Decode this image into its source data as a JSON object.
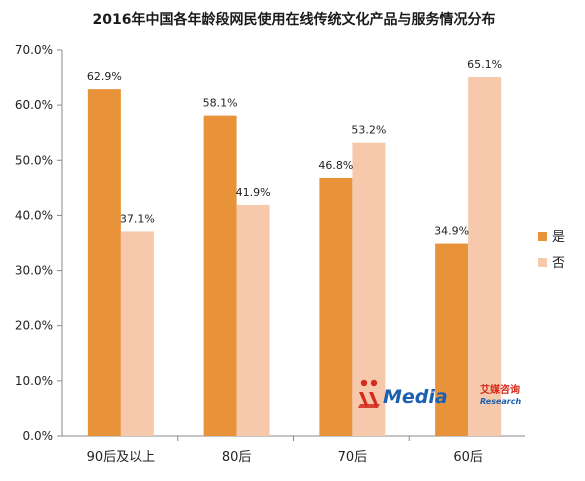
{
  "chart_data": {
    "type": "bar",
    "title": "2016年中国各年龄段网民使用在线传统文化产品与服务情况分布",
    "categories": [
      "90后及以上",
      "80后",
      "70后",
      "60后"
    ],
    "series": [
      {
        "name": "是",
        "values": [
          62.9,
          58.1,
          46.8,
          34.9
        ],
        "color": "#E8923A"
      },
      {
        "name": "否",
        "values": [
          37.1,
          41.9,
          53.2,
          65.1
        ],
        "color": "#F6C9AC"
      }
    ],
    "ylim": [
      0,
      70
    ],
    "yticks": [
      "0.0%",
      "10.0%",
      "20.0%",
      "30.0%",
      "40.0%",
      "50.0%",
      "60.0%",
      "70.0%"
    ],
    "value_suffix": "%",
    "legend_position": "right",
    "grid": false
  },
  "watermark": {
    "brand": "Media",
    "brand_cn": "艾媒咨询",
    "brand_en": "Research",
    "colors": {
      "blue": "#1B5FB0",
      "red": "#D52B1E"
    }
  }
}
